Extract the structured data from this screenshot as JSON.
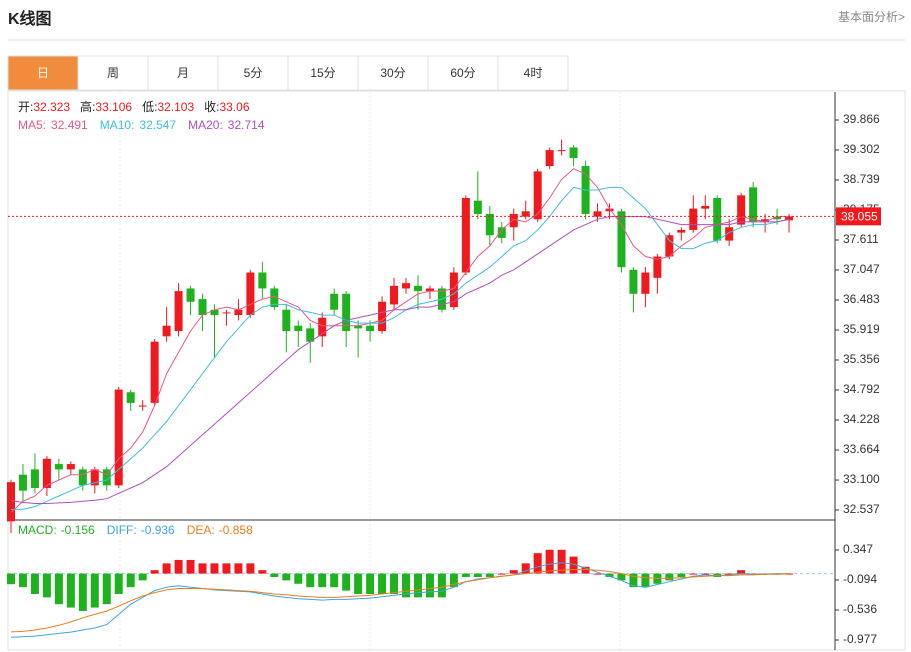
{
  "header": {
    "title": "K线图",
    "link": "基本面分析>"
  },
  "tabs": {
    "items": [
      "日",
      "周",
      "月",
      "5分",
      "15分",
      "30分",
      "60分",
      "4时"
    ],
    "active": 0
  },
  "chart_data": [
    {
      "type": "candlestick",
      "ohlc_labels": {
        "open": "开:",
        "high": "高:",
        "low": "低:",
        "close": "收:"
      },
      "open": [
        32.323,
        33.2,
        33.3,
        32.95,
        33.4,
        33.3,
        33.3,
        33.0,
        33.3,
        33.0,
        34.75,
        34.5,
        34.55,
        35.8,
        35.9,
        36.7,
        36.5,
        36.3,
        36.25,
        36.2,
        36.2,
        37.0,
        36.7,
        36.3,
        36.0,
        35.95,
        35.8,
        36.6,
        36.6,
        36.0,
        36.0,
        35.9,
        36.4,
        36.7,
        36.75,
        36.65,
        36.7,
        36.35,
        37.0,
        38.35,
        38.1,
        37.85,
        37.85,
        38.05,
        38.0,
        39.0,
        39.3,
        39.35,
        39.0,
        38.05,
        38.15,
        38.15,
        37.05,
        36.6,
        36.9,
        37.3,
        37.75,
        37.8,
        38.2,
        38.4,
        37.6,
        37.9,
        38.6,
        37.95,
        38.05,
        37.98
      ],
      "high": [
        33.106,
        33.4,
        33.6,
        33.55,
        33.5,
        33.45,
        33.35,
        33.35,
        33.35,
        34.85,
        34.8,
        34.6,
        35.75,
        36.35,
        36.8,
        36.75,
        36.6,
        36.4,
        36.3,
        36.5,
        37.05,
        37.2,
        36.75,
        36.4,
        36.1,
        36.05,
        36.25,
        36.7,
        36.65,
        36.1,
        36.1,
        36.55,
        36.9,
        36.9,
        36.95,
        36.75,
        36.75,
        37.1,
        38.45,
        38.9,
        38.25,
        37.95,
        38.2,
        38.35,
        38.95,
        39.35,
        39.5,
        39.4,
        39.1,
        38.3,
        38.3,
        38.2,
        37.1,
        37.1,
        37.35,
        37.75,
        37.85,
        38.45,
        38.45,
        38.45,
        38.0,
        38.5,
        38.7,
        38.1,
        38.2,
        38.1
      ],
      "low": [
        32.103,
        32.7,
        32.85,
        32.8,
        33.1,
        33.2,
        32.9,
        32.85,
        32.9,
        32.95,
        34.4,
        34.4,
        34.5,
        35.7,
        35.8,
        36.2,
        35.9,
        35.4,
        36.0,
        36.1,
        36.15,
        36.5,
        36.3,
        35.5,
        35.6,
        35.3,
        35.6,
        36.2,
        35.6,
        35.4,
        35.7,
        35.85,
        36.3,
        36.6,
        36.3,
        36.5,
        36.25,
        36.3,
        36.95,
        38.0,
        37.5,
        37.55,
        37.6,
        38.0,
        37.95,
        38.95,
        39.2,
        39.0,
        38.0,
        37.95,
        38.0,
        37.0,
        36.25,
        36.35,
        36.6,
        37.25,
        37.6,
        37.75,
        38.0,
        37.55,
        37.5,
        37.85,
        37.85,
        37.75,
        37.9,
        37.75
      ],
      "close": [
        33.06,
        32.9,
        32.95,
        33.5,
        33.3,
        33.4,
        33.0,
        33.3,
        33.0,
        34.8,
        34.55,
        34.5,
        35.7,
        36.0,
        36.65,
        36.45,
        36.2,
        36.2,
        36.25,
        36.3,
        37.0,
        36.7,
        36.35,
        35.9,
        35.9,
        35.7,
        36.15,
        36.3,
        35.9,
        35.95,
        35.9,
        36.45,
        36.75,
        36.8,
        36.65,
        36.7,
        36.3,
        37.0,
        38.4,
        38.1,
        37.7,
        37.65,
        38.1,
        38.15,
        38.9,
        39.3,
        39.3,
        39.15,
        38.1,
        38.15,
        38.2,
        37.1,
        36.6,
        37.0,
        37.3,
        37.7,
        37.8,
        38.2,
        38.25,
        37.6,
        37.85,
        38.45,
        37.95,
        38.0,
        38.0,
        38.055
      ],
      "up_color": "#f0191e",
      "down_color": "#1eb31e",
      "series": [
        {
          "name": "MA5:",
          "color": "#e8588a",
          "values": [
            32.491,
            32.7,
            32.8,
            33.0,
            33.1,
            33.2,
            33.2,
            33.3,
            33.2,
            33.5,
            33.7,
            34.0,
            34.5,
            35.1,
            35.5,
            35.9,
            36.2,
            36.3,
            36.35,
            36.3,
            36.4,
            36.5,
            36.55,
            36.45,
            36.35,
            36.1,
            36.0,
            36.0,
            36.0,
            36.0,
            36.05,
            36.1,
            36.3,
            36.45,
            36.6,
            36.65,
            36.65,
            36.7,
            37.0,
            37.3,
            37.5,
            37.8,
            38.0,
            37.95,
            38.1,
            38.4,
            38.75,
            38.95,
            38.85,
            38.6,
            38.2,
            37.9,
            37.5,
            37.3,
            37.25,
            37.3,
            37.5,
            37.65,
            37.85,
            37.9,
            37.95,
            38.05,
            38.0,
            37.95,
            38.05,
            38.05
          ]
        },
        {
          "name": "MA10:",
          "color": "#3fbfdc",
          "values": [
            32.547,
            32.55,
            32.6,
            32.7,
            32.8,
            32.9,
            33.0,
            33.05,
            33.1,
            33.3,
            33.5,
            33.7,
            33.95,
            34.2,
            34.5,
            34.8,
            35.1,
            35.4,
            35.7,
            35.95,
            36.2,
            36.35,
            36.4,
            36.4,
            36.3,
            36.25,
            36.2,
            36.2,
            36.1,
            36.05,
            36.05,
            36.05,
            36.15,
            36.3,
            36.4,
            36.45,
            36.5,
            36.6,
            36.8,
            36.95,
            37.1,
            37.3,
            37.5,
            37.6,
            37.8,
            38.05,
            38.35,
            38.6,
            38.55,
            38.55,
            38.6,
            38.6,
            38.4,
            38.2,
            37.9,
            37.6,
            37.45,
            37.45,
            37.55,
            37.6,
            37.75,
            37.85,
            37.9,
            37.9,
            37.95,
            38.0
          ]
        },
        {
          "name": "MA20:",
          "color": "#b04fc0",
          "values": [
            32.714,
            32.68,
            32.66,
            32.66,
            32.67,
            32.68,
            32.7,
            32.72,
            32.75,
            32.85,
            32.95,
            33.05,
            33.2,
            33.35,
            33.55,
            33.75,
            33.95,
            34.15,
            34.35,
            34.55,
            34.75,
            34.95,
            35.15,
            35.35,
            35.55,
            35.7,
            35.85,
            36.0,
            36.1,
            36.15,
            36.2,
            36.25,
            36.3,
            36.3,
            36.35,
            36.35,
            36.4,
            36.45,
            36.6,
            36.7,
            36.8,
            36.95,
            37.05,
            37.2,
            37.35,
            37.5,
            37.65,
            37.8,
            37.9,
            38.0,
            38.05,
            38.05,
            38.05,
            38.05,
            38.0,
            37.95,
            37.9,
            37.9,
            37.9,
            37.9,
            37.9,
            37.95,
            37.95,
            37.95,
            37.95,
            38.0
          ]
        }
      ],
      "current_price": 38.055,
      "ylim": [
        32.349,
        40.392
      ],
      "yticks": [
        39.866,
        39.302,
        38.739,
        38.175,
        37.611,
        37.047,
        36.483,
        35.919,
        35.356,
        34.792,
        34.228,
        33.664,
        {
          "value": 33.1,
          "label": "33.100"
        },
        32.537
      ]
    },
    {
      "type": "macd",
      "histogram": {
        "name": "MACD:",
        "color": "#1eb31e",
        "up_color": "#f0191e",
        "values": [
          -0.156,
          -0.2,
          -0.3,
          -0.35,
          -0.45,
          -0.5,
          -0.55,
          -0.5,
          -0.45,
          -0.3,
          -0.2,
          -0.1,
          0.05,
          0.15,
          0.2,
          0.2,
          0.15,
          0.15,
          0.15,
          0.15,
          0.15,
          0.05,
          -0.05,
          -0.1,
          -0.15,
          -0.2,
          -0.2,
          -0.2,
          -0.25,
          -0.3,
          -0.3,
          -0.3,
          -0.3,
          -0.35,
          -0.35,
          -0.35,
          -0.35,
          -0.2,
          -0.05,
          -0.05,
          -0.05,
          0.0,
          0.05,
          0.15,
          0.3,
          0.35,
          0.35,
          0.25,
          0.1,
          0.0,
          -0.05,
          -0.1,
          -0.2,
          -0.2,
          -0.15,
          -0.1,
          -0.05,
          0.0,
          0.0,
          -0.05,
          0.0,
          0.05,
          0.0,
          0.0,
          0.0,
          0.0
        ]
      },
      "series": [
        {
          "name": "DIFF:",
          "color": "#3aa6e0",
          "values": [
            -0.936,
            -0.93,
            -0.92,
            -0.9,
            -0.88,
            -0.86,
            -0.83,
            -0.8,
            -0.75,
            -0.6,
            -0.45,
            -0.35,
            -0.25,
            -0.2,
            -0.18,
            -0.2,
            -0.22,
            -0.24,
            -0.25,
            -0.26,
            -0.27,
            -0.3,
            -0.33,
            -0.35,
            -0.37,
            -0.38,
            -0.39,
            -0.38,
            -0.38,
            -0.37,
            -0.36,
            -0.34,
            -0.32,
            -0.3,
            -0.28,
            -0.27,
            -0.26,
            -0.2,
            -0.12,
            -0.08,
            -0.06,
            -0.04,
            -0.02,
            0.04,
            0.1,
            0.14,
            0.16,
            0.14,
            0.08,
            0.02,
            -0.04,
            -0.1,
            -0.18,
            -0.2,
            -0.16,
            -0.12,
            -0.08,
            -0.04,
            -0.02,
            -0.03,
            -0.02,
            0.0,
            -0.01,
            -0.01,
            0.0,
            0.0
          ]
        },
        {
          "name": "DEA:",
          "color": "#ee7d1a",
          "values": [
            -0.858,
            -0.85,
            -0.83,
            -0.8,
            -0.76,
            -0.71,
            -0.65,
            -0.6,
            -0.55,
            -0.48,
            -0.4,
            -0.33,
            -0.28,
            -0.24,
            -0.22,
            -0.22,
            -0.22,
            -0.23,
            -0.24,
            -0.25,
            -0.26,
            -0.28,
            -0.3,
            -0.31,
            -0.33,
            -0.34,
            -0.35,
            -0.35,
            -0.34,
            -0.33,
            -0.32,
            -0.3,
            -0.28,
            -0.26,
            -0.24,
            -0.22,
            -0.2,
            -0.16,
            -0.12,
            -0.09,
            -0.06,
            -0.04,
            -0.02,
            0.0,
            0.02,
            0.04,
            0.05,
            0.06,
            0.06,
            0.05,
            0.03,
            0.0,
            -0.04,
            -0.06,
            -0.07,
            -0.07,
            -0.06,
            -0.05,
            -0.04,
            -0.03,
            -0.03,
            -0.02,
            -0.02,
            -0.01,
            -0.01,
            0.0
          ]
        }
      ],
      "ylim": [
        -1.124,
        0.788
      ],
      "yticks": [
        0.347,
        -0.094,
        -0.536,
        -0.977
      ]
    }
  ]
}
